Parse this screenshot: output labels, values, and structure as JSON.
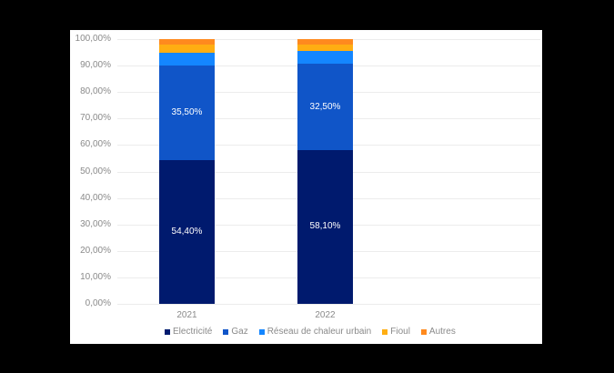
{
  "chart_data": {
    "type": "bar",
    "stacked": true,
    "title": "",
    "xlabel": "",
    "ylabel": "",
    "ylim": [
      0,
      100
    ],
    "y_ticks": [
      "0,00%",
      "10,00%",
      "20,00%",
      "30,00%",
      "40,00%",
      "50,00%",
      "60,00%",
      "70,00%",
      "80,00%",
      "90,00%",
      "100,00%"
    ],
    "categories": [
      "2021",
      "2022"
    ],
    "grid": true,
    "legend_position": "bottom",
    "series": [
      {
        "name": "Electricité",
        "color": "#001A6E",
        "values": [
          54.4,
          58.1
        ],
        "labels": [
          "54,40%",
          "58,10%"
        ]
      },
      {
        "name": "Gaz",
        "color": "#1055C8",
        "values": [
          35.5,
          32.5
        ],
        "labels": [
          "35,50%",
          "32,50%"
        ]
      },
      {
        "name": "Réseau de chaleur urbain",
        "color": "#1486FF",
        "values": [
          5.0,
          5.0
        ],
        "labels": [
          "",
          ""
        ]
      },
      {
        "name": "Fioul",
        "color": "#FFAE12",
        "values": [
          3.1,
          2.5
        ],
        "labels": [
          "",
          ""
        ]
      },
      {
        "name": "Autres",
        "color": "#FF8A1E",
        "values": [
          2.0,
          1.9
        ],
        "labels": [
          "",
          ""
        ]
      }
    ]
  }
}
